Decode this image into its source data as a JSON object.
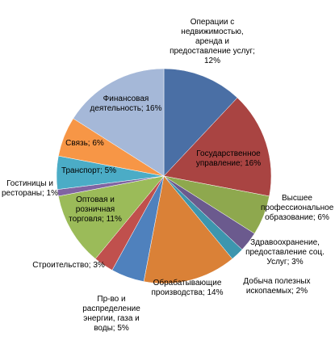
{
  "chart_data": {
    "type": "pie",
    "categories": [
      "Операции с недвижимостью, аренда и предоставление услуг; 12%",
      "Государственное управление; 16%",
      "Высшее профессиональное образование; 6%",
      "Здравоохранение, предоставление соц. Услуг; 3%",
      "Добыча полезных ископаемых; 2%",
      "Обрабатывающие производства; 14%",
      "Пр-во и распределение энергии, газа и воды; 5%",
      "Строительство; 3%",
      "Оптовая и розничная торговля; 11%",
      "Гостиницы и рестораны; 1%",
      "Транспорт; 5%",
      "Связь; 6%",
      "Финансовая деятельность; 16%"
    ],
    "values": [
      12,
      16,
      6,
      3,
      2,
      14,
      5,
      3,
      11,
      1,
      5,
      6,
      16
    ],
    "colors": [
      "#4a6fa5",
      "#a94442",
      "#8ea84e",
      "#6b5a8e",
      "#3d96ae",
      "#da8137",
      "#4f81bd",
      "#c0504d",
      "#9bbb59",
      "#8064a2",
      "#4bacc6",
      "#f79646",
      "#a5b8d8"
    ]
  }
}
